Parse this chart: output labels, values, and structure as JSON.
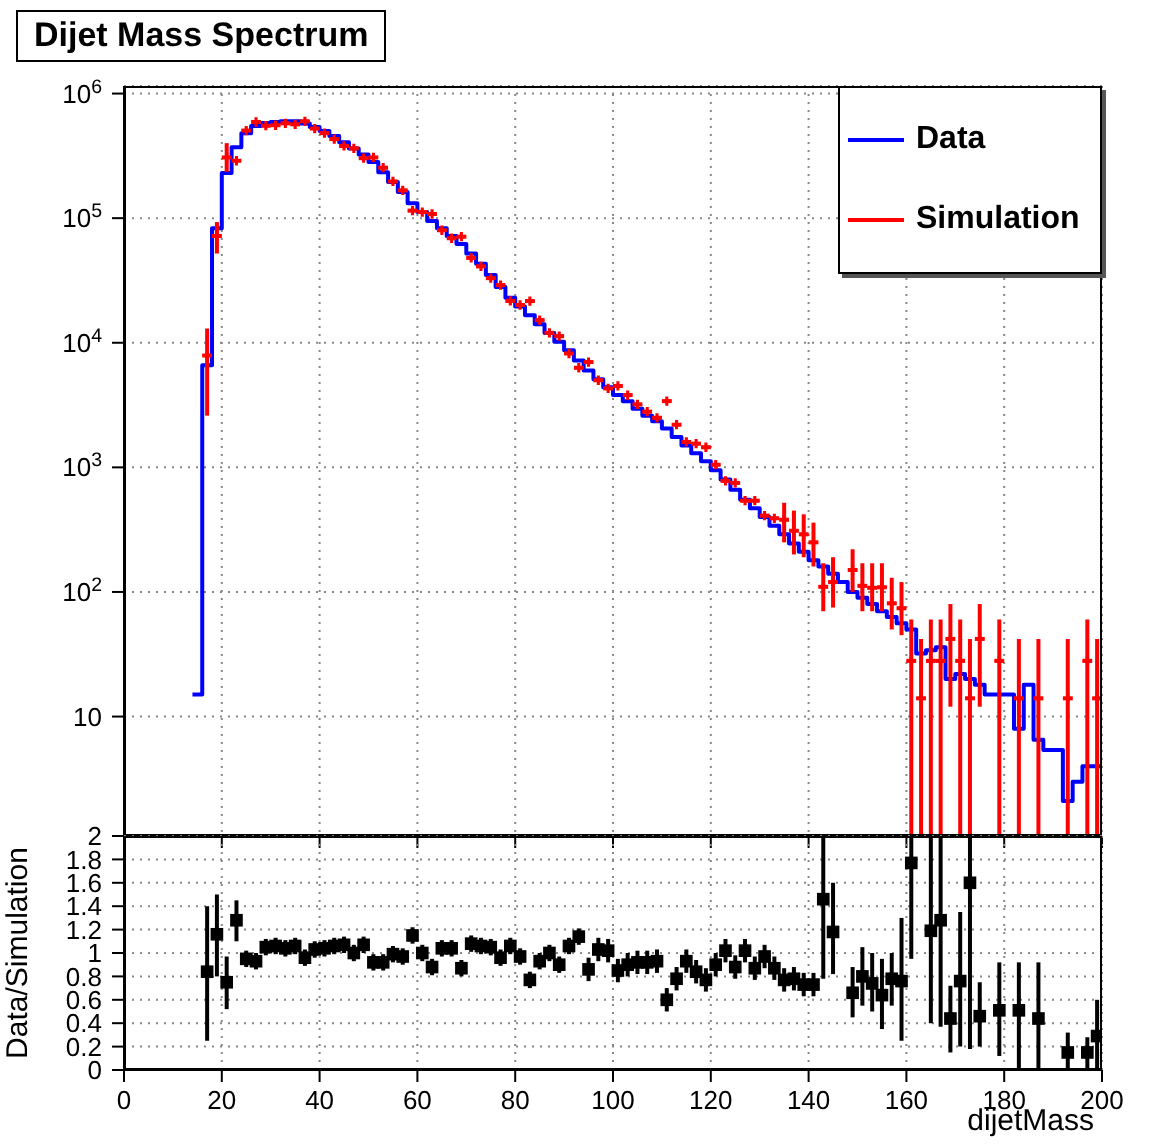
{
  "chart_data": [
    {
      "type": "step",
      "title": "Dijet Mass Spectrum",
      "xlim": [
        0,
        200
      ],
      "xticks": [
        0,
        20,
        40,
        60,
        80,
        100,
        120,
        140,
        160,
        180,
        200
      ],
      "ylim": [
        1.1,
        1150000
      ],
      "yticks": [
        10,
        {
          "value": 100,
          "label": "10$^{2}$"
        },
        {
          "value": 1000,
          "label": "10$^{3}$"
        },
        {
          "value": 10000,
          "label": "10$^{4}$"
        },
        {
          "value": 100000,
          "label": "10$^{5}$"
        },
        {
          "value": 1000000,
          "label": "10$^{6}$"
        }
      ],
      "log": "y",
      "grid": true,
      "legend": "top right",
      "tick_labels": "y",
      "series": [
        {
          "name": "Data",
          "color": "#0000ff",
          "x": [
            14,
            16,
            18,
            20,
            22,
            24,
            26,
            28,
            30,
            32,
            34,
            36,
            38,
            40,
            42,
            44,
            46,
            48,
            50,
            52,
            54,
            56,
            58,
            60,
            62,
            64,
            66,
            68,
            70,
            72,
            74,
            76,
            78,
            80,
            82,
            84,
            86,
            88,
            90,
            92,
            94,
            96,
            98,
            100,
            102,
            104,
            106,
            108,
            110,
            112,
            114,
            116,
            118,
            120,
            122,
            124,
            126,
            128,
            130,
            132,
            134,
            136,
            138,
            140,
            142,
            144,
            146,
            148,
            150,
            152,
            154,
            156,
            158,
            160,
            162,
            164,
            166,
            168,
            170,
            172,
            174,
            176,
            178,
            180,
            182,
            184,
            186,
            188,
            190,
            192,
            194,
            196,
            198,
            200
          ],
          "values": [
            15,
            6600,
            83000,
            230000,
            370000,
            480000,
            550000,
            580000,
            590000,
            600000,
            600000,
            575000,
            540000,
            500000,
            457000,
            407000,
            363000,
            324000,
            282000,
            234000,
            195000,
            162000,
            132000,
            112000,
            95000,
            83000,
            72000,
            62000,
            52000,
            43000,
            35000,
            28000,
            23000,
            19500,
            16600,
            14100,
            12000,
            10200,
            8700,
            7200,
            6000,
            5100,
            4400,
            3800,
            3400,
            2950,
            2600,
            2350,
            2050,
            1750,
            1500,
            1300,
            1120,
            950,
            800,
            660,
            550,
            470,
            400,
            340,
            290,
            245,
            210,
            180,
            160,
            140,
            120,
            100,
            90,
            80,
            70,
            63,
            56,
            50,
            32,
            34,
            36,
            20,
            22,
            20,
            18,
            15,
            15,
            15,
            8,
            18,
            6.5,
            5.4,
            5.4,
            2.1,
            3,
            4,
            4,
            4
          ]
        },
        {
          "name": "Simulation",
          "type": "scatter",
          "color": "#ff0000",
          "marker": "cross",
          "x": [
            17,
            19,
            21,
            23,
            25,
            27,
            29,
            31,
            33,
            35,
            37,
            39,
            41,
            43,
            45,
            47,
            49,
            51,
            53,
            55,
            57,
            59,
            61,
            63,
            65,
            67,
            69,
            71,
            73,
            75,
            77,
            79,
            81,
            83,
            85,
            87,
            89,
            91,
            93,
            95,
            97,
            99,
            101,
            103,
            105,
            107,
            109,
            111,
            113,
            115,
            117,
            119,
            121,
            123,
            125,
            127,
            129,
            131,
            133,
            135,
            137,
            139,
            141,
            143,
            145,
            149,
            151,
            153,
            155,
            157,
            159,
            161,
            163,
            165,
            167,
            169,
            171,
            173,
            175,
            179,
            183,
            187,
            193,
            197,
            199
          ],
          "values": [
            7900,
            72000,
            307000,
            289000,
            505000,
            591000,
            552000,
            557000,
            577000,
            566000,
            599000,
            524000,
            481000,
            431000,
            380000,
            363000,
            303000,
            307000,
            254000,
            197000,
            167000,
            115000,
            112000,
            108000,
            80000,
            69000,
            71000,
            48000,
            41000,
            33000,
            29000,
            21700,
            20100,
            21600,
            15200,
            12000,
            11300,
            8200,
            6300,
            7000,
            5000,
            4300,
            4500,
            3800,
            3200,
            2800,
            2500,
            3400,
            2200,
            1600,
            1550,
            1450,
            1050,
            780,
            750,
            540,
            540,
            410,
            390,
            380,
            310,
            290,
            250,
            110,
            120,
            150,
            112,
            108,
            109,
            81,
            74,
            28,
            14,
            28,
            28,
            42,
            28,
            14,
            42,
            28,
            14,
            14,
            14,
            28,
            14
          ],
          "errors": [
            [
              2600,
              13000
            ],
            [
              52000,
              93000
            ],
            [
              235000,
              400000
            ],
            null,
            null,
            null,
            null,
            null,
            null,
            null,
            null,
            null,
            null,
            null,
            null,
            null,
            null,
            null,
            null,
            null,
            null,
            null,
            null,
            null,
            null,
            null,
            null,
            null,
            null,
            null,
            null,
            null,
            null,
            null,
            null,
            null,
            null,
            null,
            null,
            null,
            null,
            null,
            null,
            null,
            null,
            null,
            null,
            null,
            null,
            null,
            null,
            null,
            null,
            null,
            null,
            null,
            null,
            null,
            null,
            [
              250,
              520
            ],
            [
              200,
              450
            ],
            [
              190,
              420
            ],
            [
              160,
              360
            ],
            [
              70,
              170
            ],
            [
              75,
              190
            ],
            [
              100,
              220
            ],
            [
              70,
              170
            ],
            [
              70,
              170
            ],
            [
              70,
              170
            ],
            [
              50,
              130
            ],
            [
              45,
              120
            ],
            [
              1.1,
              60
            ],
            [
              1.1,
              42
            ],
            [
              1.1,
              60
            ],
            [
              1.1,
              60
            ],
            [
              12,
              80
            ],
            [
              1.1,
              60
            ],
            [
              1.1,
              42
            ],
            [
              12,
              80
            ],
            [
              1.1,
              60
            ],
            [
              1.1,
              42
            ],
            [
              1.1,
              42
            ],
            [
              1.1,
              42
            ],
            [
              1.1,
              60
            ],
            [
              1.1,
              42
            ]
          ],
          "xerrors": [
            1,
            1,
            1,
            1,
            1,
            1,
            1,
            1,
            1,
            1,
            1,
            1,
            1,
            1,
            1,
            1,
            1,
            1,
            1,
            1,
            1,
            1,
            1,
            1,
            1,
            1,
            1,
            1,
            1,
            1,
            1,
            1,
            1,
            1,
            1,
            1,
            1,
            1,
            1,
            1,
            1,
            1,
            1,
            1,
            1,
            1,
            1,
            1,
            1,
            1,
            1,
            1,
            1,
            1,
            1,
            1,
            1,
            1,
            1,
            1,
            1,
            1,
            1,
            1,
            1,
            1,
            1,
            1,
            1,
            1,
            1,
            1,
            1,
            1,
            1,
            1,
            1,
            1,
            1,
            1,
            1,
            1,
            1,
            1,
            1
          ]
        }
      ]
    },
    {
      "type": "scatter",
      "xlabel": "dijetMass",
      "ylabel": "Data/Simulation",
      "xlim": [
        0,
        200
      ],
      "xticks": [
        0,
        20,
        40,
        60,
        80,
        100,
        120,
        140,
        160,
        180,
        200
      ],
      "ylim": [
        0,
        2
      ],
      "yticks": [
        0,
        0.2,
        0.4,
        0.6,
        0.8,
        1,
        1.2,
        1.4,
        1.6,
        1.8,
        2
      ],
      "grid": true,
      "marker": "square",
      "color": "#000000",
      "x": [
        17,
        19,
        21,
        23,
        25,
        27,
        29,
        31,
        33,
        35,
        37,
        39,
        41,
        43,
        45,
        47,
        49,
        51,
        53,
        55,
        57,
        59,
        61,
        63,
        65,
        67,
        69,
        71,
        73,
        75,
        77,
        79,
        81,
        83,
        85,
        87,
        89,
        91,
        93,
        95,
        97,
        99,
        101,
        103,
        105,
        107,
        109,
        111,
        113,
        115,
        117,
        119,
        121,
        123,
        125,
        127,
        129,
        131,
        133,
        135,
        137,
        139,
        141,
        143,
        145,
        149,
        151,
        153,
        155,
        157,
        159,
        161,
        165,
        167,
        169,
        171,
        173,
        175,
        179,
        183,
        187,
        193,
        197,
        199
      ],
      "values": [
        0.84,
        1.16,
        0.75,
        1.28,
        0.95,
        0.93,
        1.05,
        1.06,
        1.04,
        1.06,
        0.96,
        1.03,
        1.04,
        1.06,
        1.07,
        1.0,
        1.07,
        0.92,
        0.92,
        0.99,
        0.97,
        1.15,
        1.0,
        0.88,
        1.04,
        1.04,
        0.87,
        1.08,
        1.06,
        1.05,
        0.96,
        1.06,
        0.97,
        0.77,
        0.93,
        1.0,
        0.9,
        1.06,
        1.14,
        0.86,
        1.03,
        1.02,
        0.85,
        0.9,
        0.92,
        0.92,
        0.93,
        0.6,
        0.78,
        0.93,
        0.84,
        0.77,
        0.9,
        1.02,
        0.88,
        1.02,
        0.87,
        0.97,
        0.87,
        0.77,
        0.78,
        0.73,
        0.73,
        1.46,
        1.18,
        0.66,
        0.8,
        0.74,
        0.64,
        0.78,
        0.76,
        1.77,
        1.19,
        1.28,
        0.44,
        0.76,
        1.6,
        0.46,
        0.51,
        0.51,
        0.44,
        0.15,
        0.15,
        0.29
      ],
      "errors": [
        [
          0.25,
          1.4
        ],
        [
          0.8,
          1.5
        ],
        [
          0.52,
          0.97
        ],
        [
          1.1,
          1.45
        ],
        0.07,
        0.07,
        0.07,
        0.07,
        0.07,
        0.07,
        0.07,
        0.07,
        0.07,
        0.07,
        0.07,
        0.07,
        0.07,
        0.07,
        0.07,
        0.07,
        0.07,
        0.07,
        0.07,
        0.07,
        0.07,
        0.07,
        0.07,
        0.07,
        0.07,
        0.07,
        0.07,
        0.07,
        0.07,
        0.07,
        0.07,
        0.07,
        0.07,
        0.07,
        0.07,
        0.1,
        0.1,
        0.1,
        0.1,
        0.1,
        0.1,
        0.1,
        0.1,
        0.1,
        0.1,
        0.1,
        0.1,
        0.1,
        0.1,
        0.1,
        0.1,
        0.1,
        0.1,
        0.1,
        0.1,
        0.1,
        0.1,
        0.1,
        0.1,
        [
          0.78,
          2
        ],
        [
          0.82,
          1.6
        ],
        [
          0.45,
          0.88
        ],
        [
          0.55,
          1.05
        ],
        [
          0.5,
          1.0
        ],
        [
          0.35,
          0.95
        ],
        [
          0.55,
          1.0
        ],
        [
          0.25,
          1.3
        ],
        [
          0.95,
          2
        ],
        [
          0.4,
          2
        ],
        [
          0.37,
          2
        ],
        [
          0.15,
          0.72
        ],
        [
          0.2,
          1.35
        ],
        [
          0.18,
          2
        ],
        [
          0.2,
          0.75
        ],
        [
          0.12,
          0.92
        ],
        [
          0,
          0.92
        ],
        [
          0,
          0.92
        ],
        [
          0,
          0.32
        ],
        [
          0,
          0.28
        ],
        [
          0,
          0.6
        ]
      ]
    }
  ]
}
